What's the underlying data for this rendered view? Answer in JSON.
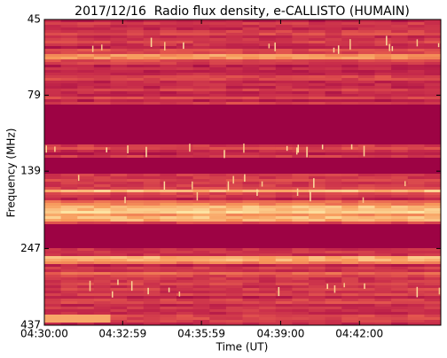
{
  "chart_data": {
    "type": "spectrogram",
    "title": "2017/12/16  Radio flux density, e-CALLISTO (HUMAIN)",
    "x_label": "Time (UT)",
    "y_label": "Frequency (MHz)",
    "xlim": [
      16200,
      17106
    ],
    "xticks": [
      {
        "value": 16200,
        "label": "04:30:00"
      },
      {
        "value": 16379,
        "label": "04:32:59"
      },
      {
        "value": 16559,
        "label": "04:35:59"
      },
      {
        "value": 16740,
        "label": "04:39:00"
      },
      {
        "value": 16920,
        "label": "04:42:00"
      }
    ],
    "ylim": [
      437,
      45
    ],
    "yticks": [
      45,
      79,
      139,
      247,
      437
    ],
    "y_scale": "log",
    "colormap": [
      "#990044",
      "#c62a4a",
      "#e65a4e",
      "#f7985a",
      "#fde3a2"
    ]
  }
}
